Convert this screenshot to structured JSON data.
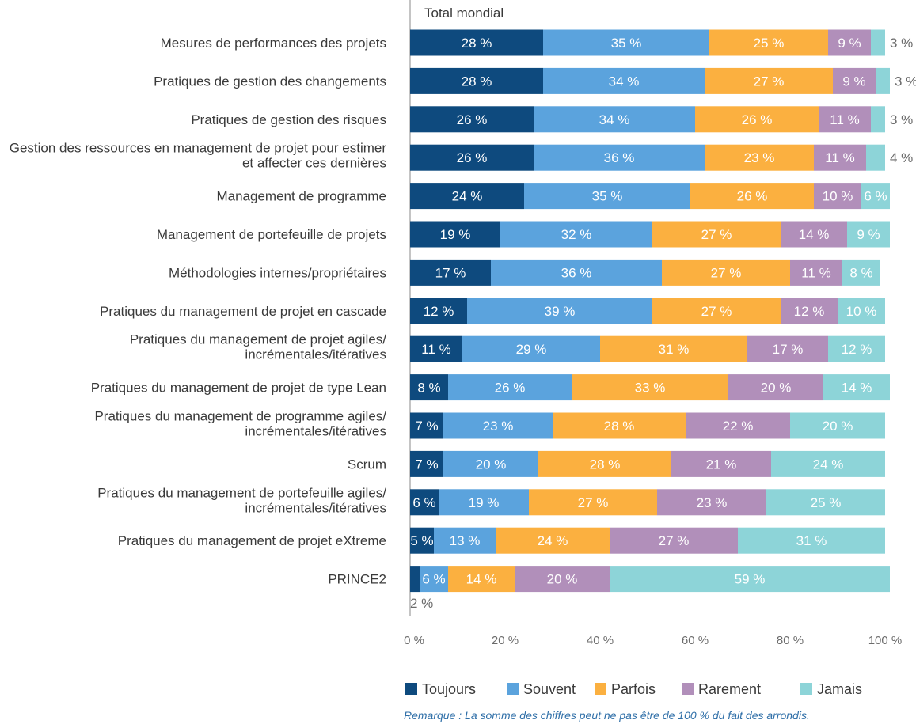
{
  "chart_data": {
    "type": "bar",
    "orientation": "horizontal",
    "stacked": true,
    "subtitle": "Total mondial",
    "xlim": [
      0,
      100
    ],
    "x_ticks": [
      "0 %",
      "20 %",
      "40 %",
      "60 %",
      "80 %",
      "100 %"
    ],
    "value_suffix": " %",
    "legend_position": "bottom",
    "categories": [
      "Mesures de performances des projets",
      "Pratiques de gestion des changements",
      "Pratiques de gestion des risques",
      "Gestion des ressources en management de projet pour estimer et affecter ces dernières",
      "Management de programme",
      "Management de portefeuille de projets",
      "Méthodologies internes/propriétaires",
      "Pratiques du management de projet en cascade",
      "Pratiques du management de projet agiles/ incrémentales/itératives",
      "Pratiques du management de projet de type Lean",
      "Pratiques du management de programme agiles/ incrémentales/itératives",
      "Scrum",
      "Pratiques du management de portefeuille agiles/ incrémentales/itératives",
      "Pratiques du management de projet eXtreme",
      "PRINCE2"
    ],
    "category_lines": [
      [
        "Mesures de performances des projets"
      ],
      [
        "Pratiques de gestion des changements"
      ],
      [
        "Pratiques de gestion des risques"
      ],
      [
        "Gestion des ressources en management de projet pour estimer",
        "et affecter ces dernières"
      ],
      [
        "Management de programme"
      ],
      [
        "Management de portefeuille de projets"
      ],
      [
        "Méthodologies internes/propriétaires"
      ],
      [
        "Pratiques du management de projet en cascade"
      ],
      [
        "Pratiques du management de projet agiles/",
        "incrémentales/itératives"
      ],
      [
        "Pratiques du management de projet de type Lean"
      ],
      [
        "Pratiques du management de programme agiles/",
        "incrémentales/itératives"
      ],
      [
        "Scrum"
      ],
      [
        "Pratiques du management de portefeuille agiles/",
        "incrémentales/itératives"
      ],
      [
        "Pratiques du management de projet eXtreme"
      ],
      [
        "PRINCE2"
      ]
    ],
    "series": [
      {
        "name": "Toujours",
        "color": "#0e4a7e",
        "values": [
          28,
          28,
          26,
          26,
          24,
          19,
          17,
          12,
          11,
          8,
          7,
          7,
          6,
          5,
          2
        ]
      },
      {
        "name": "Souvent",
        "color": "#5ba3dd",
        "values": [
          35,
          34,
          34,
          36,
          35,
          32,
          36,
          39,
          29,
          26,
          23,
          20,
          19,
          13,
          6
        ]
      },
      {
        "name": "Parfois",
        "color": "#fbb040",
        "values": [
          25,
          27,
          26,
          23,
          26,
          27,
          27,
          27,
          31,
          33,
          28,
          28,
          27,
          24,
          14
        ]
      },
      {
        "name": "Rarement",
        "color": "#b18fba",
        "values": [
          9,
          9,
          11,
          11,
          10,
          14,
          11,
          12,
          17,
          20,
          22,
          21,
          23,
          27,
          20
        ]
      },
      {
        "name": "Jamais",
        "color": "#8dd4d8",
        "values": [
          3,
          3,
          3,
          4,
          6,
          9,
          8,
          10,
          12,
          14,
          20,
          24,
          25,
          31,
          59
        ]
      }
    ],
    "note": "Remarque : La somme des chiffres peut ne pas être de 100 % du fait des arrondis."
  }
}
